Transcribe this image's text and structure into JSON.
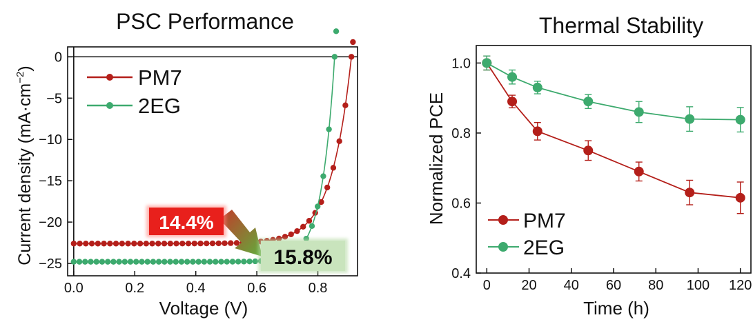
{
  "chart_data": [
    {
      "type": "line",
      "title": "PSC Performance",
      "xlabel": "Voltage (V)",
      "ylabel_main": "Current density (mA·cm",
      "ylabel_sup": "−2",
      "ylabel_end": ")",
      "xlim": [
        -0.02,
        0.93
      ],
      "ylim": [
        -26.5,
        1.2
      ],
      "xticks": [
        0.0,
        0.2,
        0.4,
        0.6,
        0.8
      ],
      "xtick_labels": [
        "0.0",
        "0.2",
        "0.4",
        "0.6",
        "0.8"
      ],
      "yticks": [
        0,
        -5,
        -10,
        -15,
        -20,
        -25
      ],
      "ytick_labels": [
        "0",
        "−5",
        "−10",
        "−15",
        "−20",
        "−25"
      ],
      "grid": false,
      "legend_position": "top-left",
      "series": [
        {
          "name": "PM7",
          "color": "#b41f1a",
          "Jsc": -22.6,
          "Voc": 0.91,
          "a": 0.22,
          "b": 15.2
        },
        {
          "name": "2EG",
          "color": "#3daa6e",
          "Jsc": -24.8,
          "Voc": 0.855,
          "a": 0.1,
          "b": 23.5
        }
      ],
      "annotations": [
        {
          "text": "14.4%",
          "color": "#e8201c",
          "text_color": "#ffffff"
        },
        {
          "text": "15.8%",
          "color": "#c9e4bd",
          "text_color": "#0a0a0a"
        }
      ]
    },
    {
      "type": "line",
      "title": "Thermal Stability",
      "xlabel": "Time (h)",
      "ylabel": "Normalized PCE",
      "xlim": [
        -5,
        125
      ],
      "ylim": [
        0.4,
        1.05
      ],
      "xticks": [
        0,
        20,
        40,
        60,
        80,
        100,
        120
      ],
      "xtick_labels": [
        "0",
        "20",
        "40",
        "60",
        "80",
        "100",
        "120"
      ],
      "yticks": [
        0.4,
        0.6,
        0.8,
        1.0
      ],
      "ytick_labels": [
        "0.4",
        "0.6",
        "0.8",
        "1.0"
      ],
      "grid": false,
      "legend_position": "bottom-left",
      "x": [
        0,
        12,
        24,
        48,
        72,
        96,
        120
      ],
      "series": [
        {
          "name": "PM7",
          "color": "#b41f1a",
          "values": [
            1.0,
            0.89,
            0.805,
            0.75,
            0.69,
            0.63,
            0.615
          ],
          "errors": [
            0.02,
            0.018,
            0.025,
            0.028,
            0.027,
            0.035,
            0.045
          ]
        },
        {
          "name": "2EG",
          "color": "#3daa6e",
          "values": [
            1.0,
            0.96,
            0.93,
            0.89,
            0.86,
            0.84,
            0.838
          ],
          "errors": [
            0.02,
            0.02,
            0.018,
            0.02,
            0.03,
            0.035,
            0.035
          ]
        }
      ]
    }
  ]
}
